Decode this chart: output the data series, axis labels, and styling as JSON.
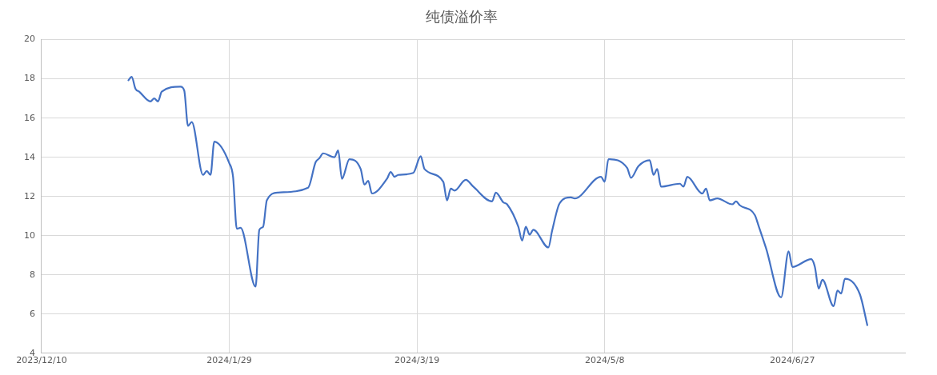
{
  "chart_data": {
    "type": "line",
    "title": "纯债溢价率",
    "x": [
      "2024-01-02",
      "2024-01-03",
      "2024-01-04",
      "2024-01-05",
      "2024-01-08",
      "2024-01-09",
      "2024-01-10",
      "2024-01-11",
      "2024-01-16",
      "2024-01-17",
      "2024-01-18",
      "2024-01-19",
      "2024-01-22",
      "2024-01-23",
      "2024-01-24",
      "2024-01-25",
      "2024-01-29",
      "2024-01-30",
      "2024-01-31",
      "2024-02-01",
      "2024-02-05",
      "2024-02-06",
      "2024-02-07",
      "2024-02-08",
      "2024-02-11",
      "2024-02-19",
      "2024-02-21",
      "2024-02-22",
      "2024-02-23",
      "2024-02-26",
      "2024-02-27",
      "2024-02-28",
      "2024-03-01",
      "2024-03-04",
      "2024-03-05",
      "2024-03-06",
      "2024-03-07",
      "2024-03-11",
      "2024-03-12",
      "2024-03-13",
      "2024-03-14",
      "2024-03-18",
      "2024-03-20",
      "2024-03-21",
      "2024-03-26",
      "2024-03-27",
      "2024-03-28",
      "2024-03-29",
      "2024-04-01",
      "2024-04-03",
      "2024-04-08",
      "2024-04-09",
      "2024-04-11",
      "2024-04-12",
      "2024-04-15",
      "2024-04-16",
      "2024-04-17",
      "2024-04-18",
      "2024-04-19",
      "2024-04-23",
      "2024-04-24",
      "2024-04-26",
      "2024-04-29",
      "2024-04-30",
      "2024-05-07",
      "2024-05-08",
      "2024-05-09",
      "2024-05-14",
      "2024-05-15",
      "2024-05-17",
      "2024-05-20",
      "2024-05-21",
      "2024-05-22",
      "2024-05-23",
      "2024-05-28",
      "2024-05-29",
      "2024-05-30",
      "2024-06-03",
      "2024-06-04",
      "2024-06-05",
      "2024-06-07",
      "2024-06-11",
      "2024-06-12",
      "2024-06-13",
      "2024-06-17",
      "2024-06-18",
      "2024-06-20",
      "2024-06-24",
      "2024-06-26",
      "2024-06-27",
      "2024-07-02",
      "2024-07-03",
      "2024-07-04",
      "2024-07-05",
      "2024-07-08",
      "2024-07-09",
      "2024-07-10",
      "2024-07-11",
      "2024-07-15",
      "2024-07-17"
    ],
    "series": [
      {
        "color": "#4472c4",
        "values": [
          17.9,
          18.1,
          17.5,
          17.35,
          16.85,
          17.0,
          16.85,
          17.35,
          17.6,
          17.4,
          15.6,
          15.8,
          13.1,
          13.3,
          13.1,
          14.8,
          13.7,
          13.0,
          10.35,
          10.4,
          7.4,
          10.3,
          10.45,
          11.8,
          12.2,
          12.45,
          13.75,
          13.95,
          14.2,
          14.0,
          14.35,
          12.9,
          13.9,
          13.4,
          12.6,
          12.8,
          12.15,
          12.9,
          13.25,
          13.0,
          13.1,
          13.2,
          14.05,
          13.4,
          12.75,
          11.8,
          12.4,
          12.3,
          12.85,
          12.5,
          11.75,
          12.2,
          11.7,
          11.6,
          10.45,
          9.75,
          10.45,
          10.05,
          10.3,
          9.4,
          10.25,
          11.65,
          11.95,
          11.9,
          13.0,
          12.75,
          13.9,
          13.45,
          12.95,
          13.55,
          13.85,
          13.1,
          13.4,
          12.5,
          12.65,
          12.5,
          13.0,
          12.15,
          12.4,
          11.8,
          11.9,
          11.6,
          11.75,
          11.55,
          11.05,
          10.5,
          9.35,
          6.85,
          9.2,
          8.4,
          8.8,
          8.4,
          7.3,
          7.75,
          6.4,
          7.2,
          7.05,
          7.8,
          7.0,
          5.4
        ]
      }
    ],
    "xlim": [
      "2023-12-10",
      "2024-07-27"
    ],
    "xticks": [
      {
        "value": "2023-12-10",
        "label": "2023/12/10"
      },
      {
        "value": "2024-01-29",
        "label": "2024/1/29"
      },
      {
        "value": "2024-03-19",
        "label": "2024/3/19"
      },
      {
        "value": "2024-05-08",
        "label": "2024/5/8"
      },
      {
        "value": "2024-06-27",
        "label": "2024/6/27"
      }
    ],
    "ylim": [
      4,
      20
    ],
    "yticks": [
      4,
      6,
      8,
      10,
      12,
      14,
      16,
      18,
      20
    ],
    "grid": true,
    "legend": false,
    "marker": "none",
    "line_style": "solid"
  }
}
